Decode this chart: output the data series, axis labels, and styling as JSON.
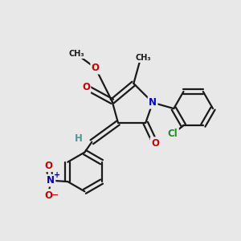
{
  "bg_color": "#e8e8e8",
  "bond_color": "#1a1a1a",
  "atom_colors": {
    "O": "#cc0000",
    "N": "#0000cc",
    "Cl": "#228B22",
    "H": "#4a9a9a",
    "C": "#1a1a1a"
  },
  "figsize": [
    3.0,
    3.0
  ],
  "dpi": 100,
  "lw": 1.6,
  "do": 0.1
}
